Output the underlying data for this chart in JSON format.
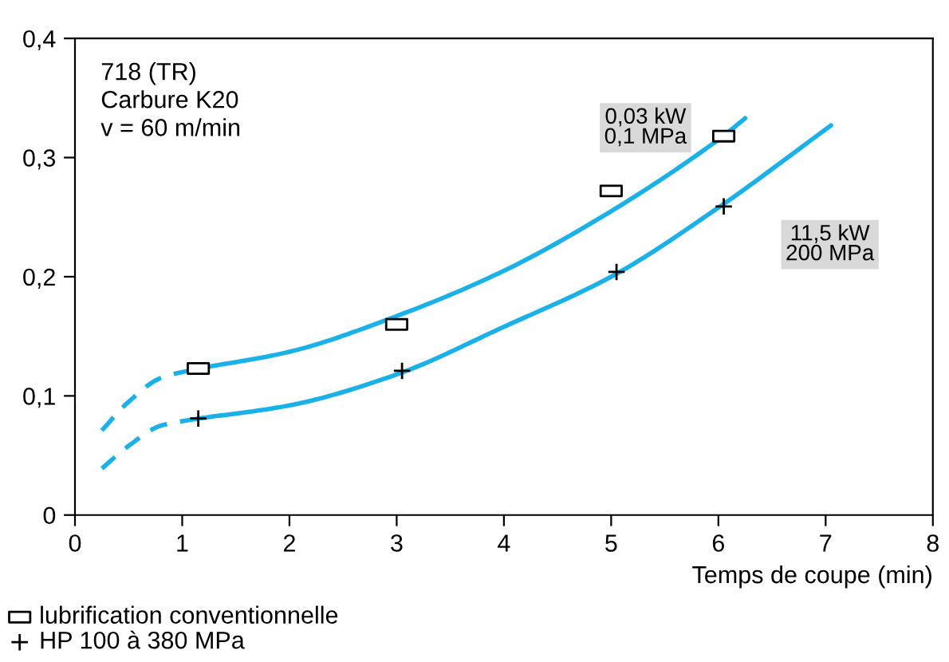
{
  "chart_data": {
    "type": "scatter",
    "xlabel": "Temps de coupe (min)",
    "xlim": [
      0,
      8
    ],
    "xticks": [
      0,
      1,
      2,
      3,
      4,
      5,
      6,
      7,
      8
    ],
    "ylim": [
      0,
      0.4
    ],
    "yticks": [
      {
        "value": 0,
        "label": "0"
      },
      {
        "value": 0.1,
        "label": "0,1"
      },
      {
        "value": 0.2,
        "label": "0,2"
      },
      {
        "value": 0.3,
        "label": "0,3"
      },
      {
        "value": 0.4,
        "label": "0,4"
      }
    ],
    "grid": false,
    "legend": "bottom left",
    "series": [
      {
        "name": "lubrification conventionnelle",
        "marker": "square",
        "color": "#000000",
        "x": [
          1.15,
          3.0,
          5.0,
          6.05
        ],
        "values": [
          0.123,
          0.16,
          0.272,
          0.318
        ]
      },
      {
        "name": "HP 100 à 380 MPa",
        "marker": "cross",
        "color": "#000000",
        "x": [
          1.15,
          3.05,
          5.05,
          6.05
        ],
        "values": [
          0.081,
          0.121,
          0.204,
          0.259
        ]
      },
      {
        "type": "line",
        "line_style": "solid",
        "color": "#1ab0e8",
        "x": [
          1.15,
          2,
          3,
          4,
          5,
          6,
          6.25
        ],
        "values": [
          0.123,
          0.137,
          0.167,
          0.205,
          0.255,
          0.315,
          0.333
        ]
      },
      {
        "type": "line",
        "line_style": "dashed",
        "color": "#1ab0e8",
        "x": [
          0.25,
          0.5,
          0.8,
          1.15
        ],
        "values": [
          0.071,
          0.095,
          0.115,
          0.123
        ]
      },
      {
        "type": "line",
        "line_style": "solid",
        "color": "#1ab0e8",
        "x": [
          1.15,
          2,
          3,
          4,
          5,
          6,
          7.05
        ],
        "values": [
          0.081,
          0.092,
          0.118,
          0.158,
          0.2,
          0.258,
          0.327
        ]
      },
      {
        "type": "line",
        "line_style": "dashed",
        "color": "#1ab0e8",
        "x": [
          0.25,
          0.5,
          0.8,
          1.15
        ],
        "values": [
          0.039,
          0.058,
          0.075,
          0.081
        ]
      }
    ],
    "annotations": [
      "718 (TR)\nCarbure K20\nv = 60 m/min",
      "0,03 kW\n0,1 MPa",
      "11,5 kW\n200 MPa"
    ]
  }
}
